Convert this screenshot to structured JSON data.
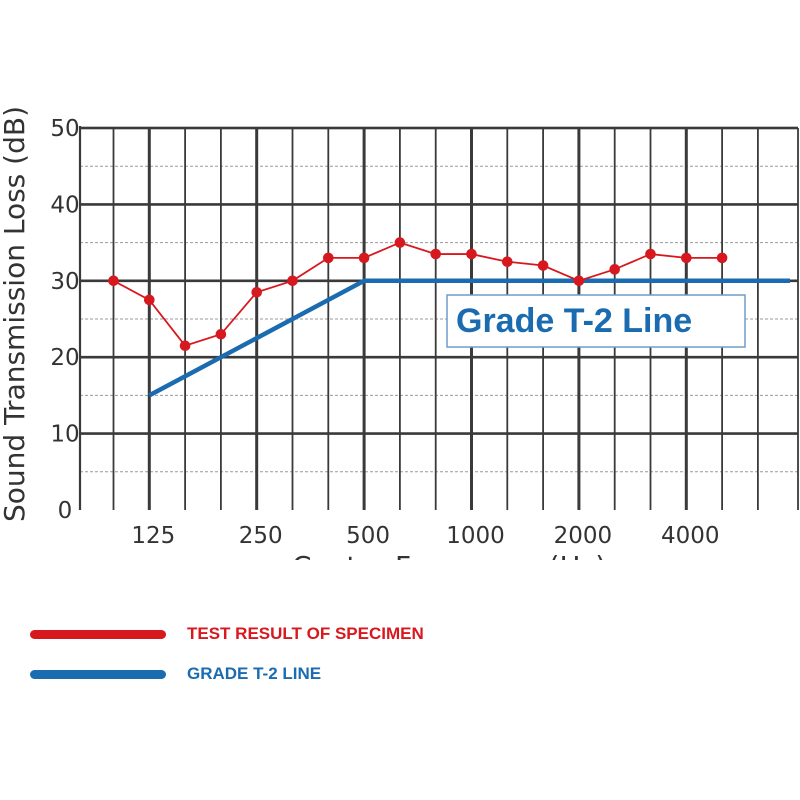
{
  "colors": {
    "test": "#d7191f",
    "grade": "#1b6bb0",
    "grid": "#3a3a3a",
    "minor_grid": "#9a9a9a"
  },
  "chart_data": {
    "type": "line",
    "xlabel": "Center Frequency (Hz)",
    "ylabel": "Sound Transmission Loss (dB)",
    "ylim": [
      0,
      50
    ],
    "yticks": [
      "0",
      "10",
      "20",
      "30",
      "40",
      "50"
    ],
    "x_tick_labels": [
      "125",
      "250",
      "500",
      "1000",
      "2000",
      "4000"
    ],
    "grid": true,
    "legend_position": "bottom",
    "series": [
      {
        "name": "TEST RESULT OF SPECIMEN",
        "style": "line-markers",
        "x": [
          "100",
          "125",
          "160",
          "200",
          "250",
          "315",
          "400",
          "500",
          "630",
          "800",
          "1000",
          "1250",
          "1600",
          "2000",
          "2500",
          "3150",
          "4000",
          "5000"
        ],
        "values": [
          30,
          27.5,
          21.5,
          23,
          28.5,
          30,
          33,
          33,
          35,
          33.5,
          33.5,
          32.5,
          32,
          30,
          31.5,
          33.5,
          33,
          33
        ]
      },
      {
        "name": "GRADE T-2 LINE",
        "style": "line",
        "x": [
          "125",
          "500",
          "6300"
        ],
        "values": [
          15,
          30,
          30
        ]
      }
    ],
    "annotation": "Grade T-2 Line"
  }
}
